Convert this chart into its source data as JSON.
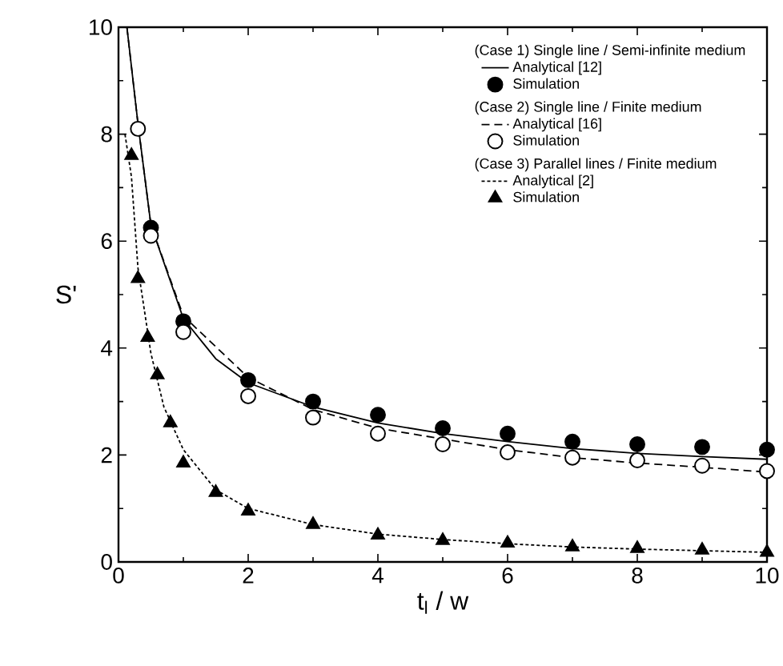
{
  "chart_data": {
    "type": "line",
    "xlabel": "t$_{l}$ / w",
    "ylabel": "S'",
    "xlim": [
      0,
      10
    ],
    "ylim": [
      0,
      10
    ],
    "xticks": [
      0,
      2,
      4,
      6,
      8,
      10
    ],
    "yticks": [
      0,
      2,
      4,
      6,
      8,
      10
    ],
    "grid": false,
    "legend": "top right",
    "annotations": [
      "(Case 1) Single line / Semi-infinite medium",
      "(Case 2) Single line / Finite medium",
      "(Case 3) Parallel lines / Finite medium"
    ],
    "series": [
      {
        "name": "Analytical [12]",
        "line_style": "solid",
        "color": "#000000",
        "x": [
          0.13,
          0.3,
          0.5,
          1,
          1.5,
          2,
          3,
          4,
          5,
          6,
          7,
          8,
          9,
          10
        ],
        "values": [
          10,
          8.2,
          6.3,
          4.55,
          3.8,
          3.35,
          2.9,
          2.6,
          2.4,
          2.25,
          2.12,
          2.03,
          1.97,
          1.92
        ]
      },
      {
        "name": "Simulation",
        "type": "scatter",
        "marker": "circle",
        "color": "#000000",
        "x": [
          0.5,
          1,
          2,
          3,
          4,
          5,
          6,
          7,
          8,
          9,
          10
        ],
        "values": [
          6.25,
          4.5,
          3.4,
          3.0,
          2.75,
          2.5,
          2.4,
          2.25,
          2.2,
          2.15,
          2.1
        ]
      },
      {
        "name": "Analytical [16]",
        "line_style": "dashed",
        "color": "#000000",
        "x": [
          0.13,
          0.3,
          0.5,
          1,
          2,
          3,
          4,
          5,
          6,
          7,
          8,
          9,
          10
        ],
        "values": [
          10,
          8.2,
          6.3,
          4.6,
          3.45,
          2.85,
          2.5,
          2.3,
          2.1,
          1.95,
          1.85,
          1.77,
          1.68
        ]
      },
      {
        "name": "Simulation",
        "type": "scatter",
        "marker": "circle",
        "color": "#000000",
        "x": [
          0.3,
          0.5,
          1,
          2,
          3,
          4,
          5,
          6,
          7,
          8,
          9,
          10
        ],
        "values": [
          8.1,
          6.1,
          4.3,
          3.1,
          2.7,
          2.4,
          2.2,
          2.05,
          1.95,
          1.9,
          1.8,
          1.7
        ]
      },
      {
        "name": "Analytical [2]",
        "line_style": "dotted",
        "color": "#000000",
        "x": [
          0.1,
          0.2,
          0.3,
          0.5,
          0.7,
          1,
          1.5,
          2,
          3,
          4,
          5,
          6,
          7,
          8,
          9,
          10
        ],
        "values": [
          8,
          7.2,
          5.5,
          3.9,
          2.9,
          2.1,
          1.35,
          1.0,
          0.7,
          0.52,
          0.42,
          0.34,
          0.28,
          0.24,
          0.21,
          0.18
        ]
      },
      {
        "name": "Simulation",
        "type": "scatter",
        "marker": "triangle",
        "color": "#000000",
        "x": [
          0.2,
          0.3,
          0.45,
          0.6,
          0.8,
          1,
          1.5,
          2,
          3,
          4,
          5,
          6,
          7,
          8,
          9,
          10
        ],
        "values": [
          7.6,
          5.3,
          4.2,
          3.5,
          2.6,
          1.85,
          1.3,
          0.95,
          0.7,
          0.5,
          0.4,
          0.35,
          0.28,
          0.25,
          0.22,
          0.18
        ]
      }
    ]
  }
}
